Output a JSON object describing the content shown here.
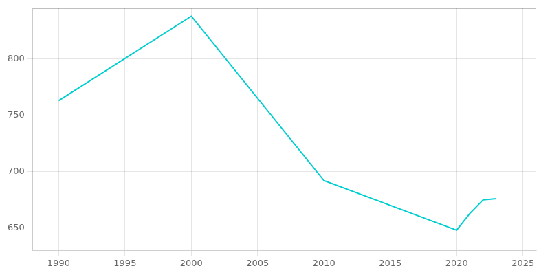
{
  "chart_data": {
    "type": "line",
    "x": [
      1990,
      2000,
      2010,
      2020,
      2021,
      2022,
      2023
    ],
    "values": [
      763,
      838,
      692,
      648,
      663,
      675,
      676
    ],
    "color": "#00CED1",
    "xlim": [
      1988,
      2026
    ],
    "ylim": [
      630,
      845
    ],
    "xticks": [
      1990,
      1995,
      2000,
      2005,
      2010,
      2015,
      2020,
      2025
    ],
    "yticks": [
      650,
      700,
      750,
      800
    ],
    "grid": true
  }
}
